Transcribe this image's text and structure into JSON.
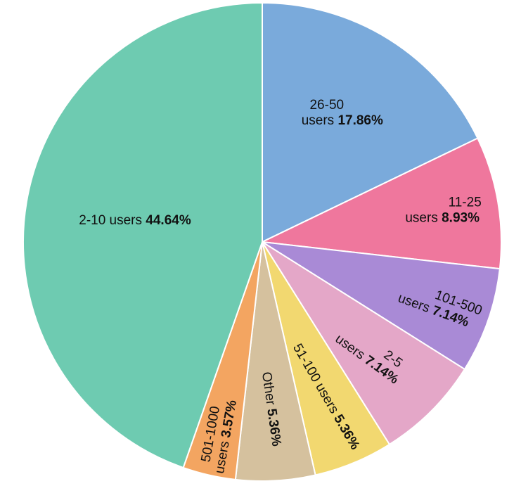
{
  "chart_data": {
    "type": "pie",
    "title": "",
    "slices": [
      {
        "name": "26-50 users",
        "value": 17.86,
        "label_lines": [
          "26-50",
          "users"
        ],
        "pct": "17.86%",
        "color": "#7aaadb"
      },
      {
        "name": "11-25 users",
        "value": 8.93,
        "label_lines": [
          "11-25",
          "users"
        ],
        "pct": "8.93%",
        "color": "#ef779d"
      },
      {
        "name": "101-500 users",
        "value": 7.14,
        "label_lines": [
          "101-500",
          "users"
        ],
        "pct": "7.14%",
        "color": "#a98ad6"
      },
      {
        "name": "2-5 users",
        "value": 7.14,
        "label_lines": [
          "2-5",
          "users"
        ],
        "pct": "7.14%",
        "color": "#e4a7c8"
      },
      {
        "name": "51-100 users",
        "value": 5.36,
        "label_lines": [
          "51-100 users"
        ],
        "pct": "5.36%",
        "color": "#f2d870"
      },
      {
        "name": "Other",
        "value": 5.36,
        "label_lines": [
          "Other"
        ],
        "pct": "5.36%",
        "color": "#d5c19e"
      },
      {
        "name": "501-1000 users",
        "value": 3.57,
        "label_lines": [
          "501-1000",
          "users"
        ],
        "pct": "3.57%",
        "color": "#f3a561"
      },
      {
        "name": "2-10 users",
        "value": 44.64,
        "label_lines": [
          "2-10 users"
        ],
        "pct": "44.64%",
        "color": "#6ecbb1"
      }
    ]
  }
}
